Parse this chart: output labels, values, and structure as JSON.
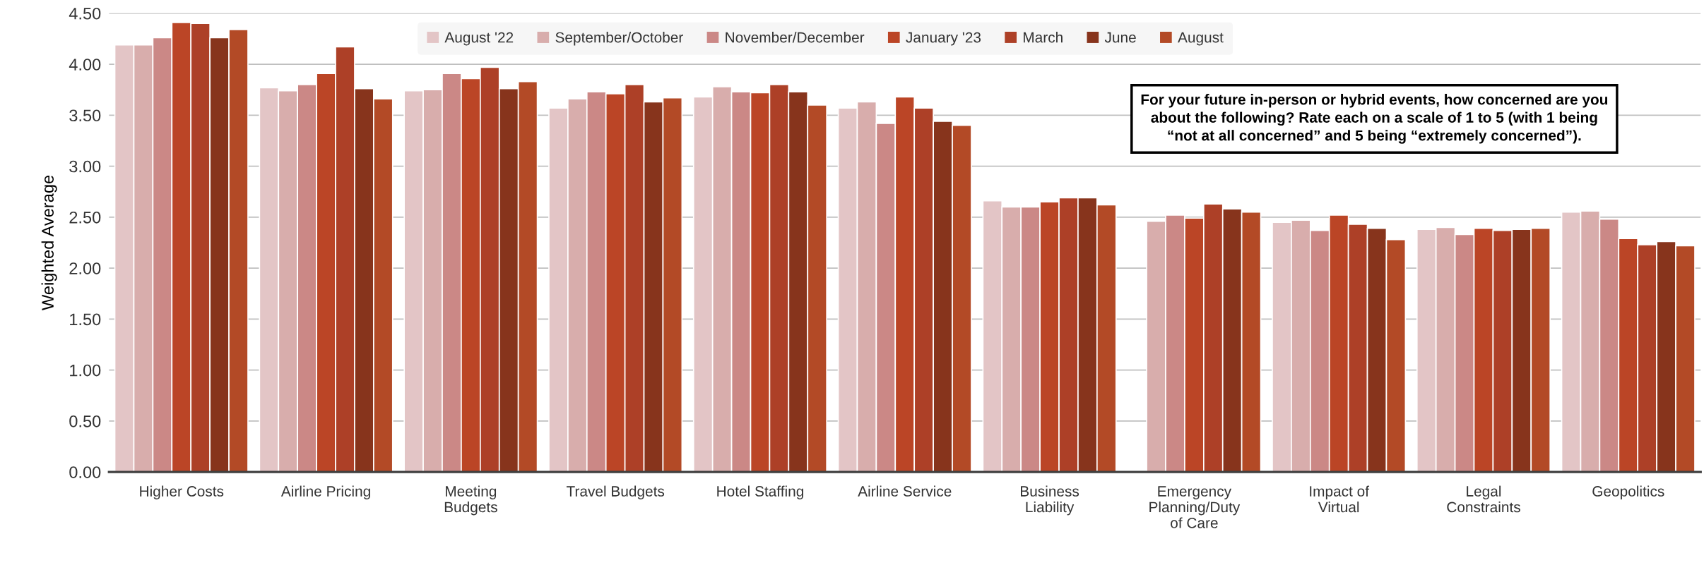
{
  "chart_data": {
    "type": "bar",
    "ylabel": "Weighted Average",
    "categories": [
      "Higher Costs",
      "Airline Pricing",
      "Meeting\nBudgets",
      "Travel Budgets",
      "Hotel Staffing",
      "Airline Service",
      "Business\nLiability",
      "Emergency\nPlanning/Duty\nof Care",
      "Impact of\nVirtual",
      "Legal\nConstraints",
      "Geopolitics"
    ],
    "series": [
      {
        "name": "August '22",
        "color": "#e3c5c6",
        "values": [
          4.19,
          3.77,
          3.74,
          3.57,
          3.68,
          3.57,
          2.66,
          null,
          2.45,
          2.38,
          2.55
        ]
      },
      {
        "name": "September/October",
        "color": "#d8adac",
        "values": [
          4.19,
          3.74,
          3.75,
          3.66,
          3.78,
          3.63,
          2.6,
          2.46,
          2.47,
          2.4,
          2.56
        ]
      },
      {
        "name": "November/December",
        "color": "#cb8886",
        "values": [
          4.26,
          3.8,
          3.91,
          3.73,
          3.73,
          3.42,
          2.6,
          2.52,
          2.37,
          2.33,
          2.48
        ]
      },
      {
        "name": "January '23",
        "color": "#bb4526",
        "values": [
          4.41,
          3.91,
          3.86,
          3.71,
          3.72,
          3.68,
          2.65,
          2.49,
          2.52,
          2.39,
          2.29
        ]
      },
      {
        "name": "March",
        "color": "#ad4027",
        "values": [
          4.4,
          4.17,
          3.97,
          3.8,
          3.8,
          3.57,
          2.69,
          2.63,
          2.43,
          2.37,
          2.23
        ]
      },
      {
        "name": "June",
        "color": "#87341c",
        "values": [
          4.26,
          3.76,
          3.76,
          3.63,
          3.73,
          3.44,
          2.69,
          2.58,
          2.39,
          2.38,
          2.26
        ]
      },
      {
        "name": "August",
        "color": "#b34a26",
        "values": [
          4.34,
          3.66,
          3.83,
          3.67,
          3.6,
          3.4,
          2.62,
          2.55,
          2.28,
          2.39,
          2.22
        ]
      }
    ],
    "ylim": [
      0,
      4.5
    ],
    "yticks": [
      {
        "value": 0,
        "label": "0.00"
      },
      {
        "value": 0.5,
        "label": "0.50"
      },
      {
        "value": 1,
        "label": "1.00"
      },
      {
        "value": 1.5,
        "label": "1.50"
      },
      {
        "value": 2,
        "label": "2.00"
      },
      {
        "value": 2.5,
        "label": "2.50"
      },
      {
        "value": 3,
        "label": "3.00"
      },
      {
        "value": 3.5,
        "label": "3.50"
      },
      {
        "value": 4,
        "label": "4.00"
      },
      {
        "value": 4.5,
        "label": "4.50"
      }
    ],
    "grid": "y",
    "legend": "top",
    "annotations": [
      "For your future in-person or hybrid events, how concerned are you\nabout the following? Rate each on a scale of 1 to 5 (with 1 being\n“not at all concerned” and 5 being “extremely concerned”)."
    ]
  }
}
